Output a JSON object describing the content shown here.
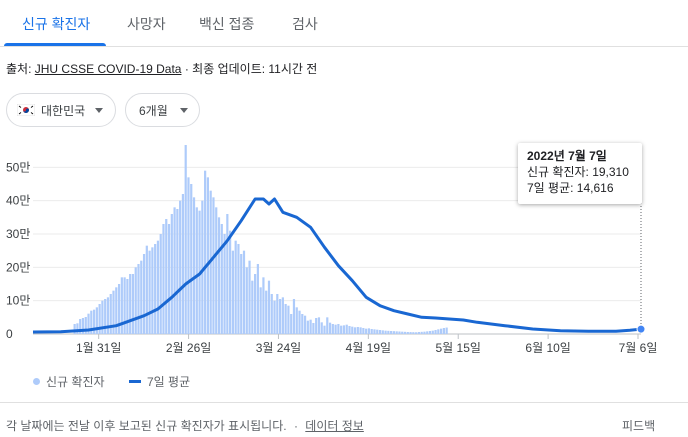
{
  "tabs": [
    {
      "label": "신규 확진자",
      "active": true
    },
    {
      "label": "사망자",
      "active": false
    },
    {
      "label": "백신 접종",
      "active": false
    },
    {
      "label": "검사",
      "active": false
    }
  ],
  "source": {
    "prefix": "출처:",
    "link": "JHU CSSE COVID-19 Data",
    "suffix": "· 최종 업데이트: 11시간 전"
  },
  "filters": {
    "country": "대한민국",
    "country_flag_icon": "south-korea-flag-icon",
    "period": "6개월"
  },
  "tooltip": {
    "date": "2022년 7월 7일",
    "cases_line": "신규 확진자: 19,310",
    "avg_line": "7일 평균: 14,616"
  },
  "legend": {
    "bars_label": "신규 확진자",
    "line_label": "7일 평균"
  },
  "footer": {
    "note": "각 날짜에는 전날 이후 보고된 신규 확진자가 표시됩니다.",
    "separator": "·",
    "data_info": "데이터 정보",
    "feedback": "피드백"
  },
  "colors": {
    "accent": "#1a73e8",
    "bar": "#aecbfa",
    "line": "#1967d2"
  },
  "chart_data": {
    "type": "bar",
    "ylim": [
      0,
      60000
    ],
    "y_ticks": [
      {
        "value": 0,
        "label": "0"
      },
      {
        "value": 10000,
        "label": "10만"
      },
      {
        "value": 20000,
        "label": "20만"
      },
      {
        "value": 30000,
        "label": "30만"
      },
      {
        "value": 40000,
        "label": "40만"
      },
      {
        "value": 50000,
        "label": "50만"
      }
    ],
    "x_ticks": [
      {
        "day": 19,
        "label": "1월 31일"
      },
      {
        "day": 45,
        "label": "2월 26일"
      },
      {
        "day": 71,
        "label": "3월 24일"
      },
      {
        "day": 97,
        "label": "4월 19일"
      },
      {
        "day": 123,
        "label": "5월 15일"
      },
      {
        "day": 149,
        "label": "6월 10일"
      },
      {
        "day": 175,
        "label": "7월 6일"
      }
    ],
    "series": [
      {
        "name": "신규 확진자",
        "kind": "bar",
        "start_day": 15,
        "values": [
          3000,
          3200,
          4500,
          4800,
          5100,
          6100,
          7000,
          7300,
          8000,
          9000,
          10000,
          10500,
          11000,
          12000,
          13000,
          14000,
          15000,
          17000,
          17000,
          16500,
          18000,
          18000,
          20000,
          21000,
          22000,
          24000,
          26500,
          25000,
          26000,
          27000,
          28000,
          30000,
          33000,
          34500,
          33000,
          36000,
          38000,
          37500,
          40000,
          42000,
          56700,
          47000,
          45000,
          41000,
          38000,
          37000,
          40000,
          49000,
          47000,
          43000,
          41000,
          38000,
          35000,
          33000,
          30000,
          36000,
          31000,
          25000,
          28000,
          27000,
          24000,
          25000,
          20000,
          22000,
          16000,
          18000,
          21000,
          14000,
          17000,
          13000,
          16000,
          12000,
          10000,
          12000,
          10500,
          11000,
          9000,
          8500,
          6000,
          10500,
          8000,
          7000,
          6000,
          5500,
          4000,
          4300,
          3300,
          4800,
          5000,
          3500,
          2500,
          5000,
          3400,
          3000,
          2800,
          3000,
          2500,
          2600,
          2800,
          2400,
          2200,
          2000,
          2100,
          2000,
          1800,
          1600,
          1700,
          1500,
          1400,
          1300,
          1200,
          1100,
          1000,
          950,
          900,
          850,
          800,
          750,
          700,
          650,
          600,
          580,
          550,
          520,
          600,
          650,
          700,
          800,
          900,
          1000,
          1200,
          1400,
          1600,
          1800,
          1931
        ]
      },
      {
        "name": "7일 평균",
        "kind": "line",
        "points": [
          [
            0,
            600
          ],
          [
            10,
            700
          ],
          [
            20,
            1200
          ],
          [
            30,
            2500
          ],
          [
            35,
            4000
          ],
          [
            40,
            5500
          ],
          [
            45,
            7500
          ],
          [
            50,
            11000
          ],
          [
            55,
            15000
          ],
          [
            60,
            18000
          ],
          [
            65,
            23000
          ],
          [
            70,
            28000
          ],
          [
            75,
            34000
          ],
          [
            80,
            40500
          ],
          [
            83,
            40500
          ],
          [
            85,
            39000
          ],
          [
            87,
            40500
          ],
          [
            90,
            36500
          ],
          [
            95,
            35000
          ],
          [
            100,
            32000
          ],
          [
            105,
            26000
          ],
          [
            110,
            20500
          ],
          [
            115,
            16000
          ],
          [
            120,
            11000
          ],
          [
            125,
            8500
          ],
          [
            130,
            7000
          ],
          [
            135,
            6000
          ],
          [
            140,
            5000
          ],
          [
            145,
            4800
          ],
          [
            150,
            4500
          ],
          [
            155,
            4200
          ],
          [
            160,
            3500
          ],
          [
            170,
            2500
          ],
          [
            180,
            1500
          ],
          [
            190,
            1000
          ],
          [
            200,
            800
          ],
          [
            210,
            800
          ],
          [
            215,
            1100
          ],
          [
            219,
            1462
          ]
        ]
      }
    ]
  }
}
